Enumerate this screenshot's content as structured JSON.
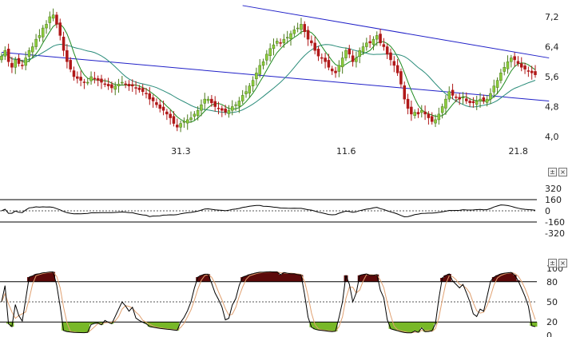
{
  "chart_data": [
    {
      "type": "candlestick",
      "x_tick_labels": [
        "31.3",
        "11.6",
        "21.8"
      ],
      "y_tick_labels": [
        "7,2",
        "6,4",
        "5,6",
        "4,8",
        "4,0"
      ],
      "ylim": [
        4.0,
        7.4
      ],
      "closes": [
        6.15,
        6.3,
        6.0,
        5.85,
        6.05,
        5.95,
        5.9,
        6.1,
        6.3,
        6.4,
        6.6,
        6.7,
        6.9,
        7.0,
        7.2,
        7.25,
        7.0,
        6.7,
        6.3,
        6.0,
        5.8,
        5.6,
        5.55,
        5.5,
        5.45,
        5.45,
        5.6,
        5.55,
        5.5,
        5.45,
        5.4,
        5.35,
        5.3,
        5.35,
        5.4,
        5.45,
        5.4,
        5.35,
        5.35,
        5.3,
        5.25,
        5.2,
        5.15,
        5.0,
        4.95,
        4.85,
        4.75,
        4.7,
        4.6,
        4.5,
        4.35,
        4.25,
        4.35,
        4.4,
        4.45,
        4.5,
        4.6,
        4.7,
        4.85,
        5.0,
        5.0,
        4.9,
        4.8,
        4.75,
        4.7,
        4.65,
        4.7,
        4.8,
        4.85,
        4.95,
        5.1,
        5.2,
        5.35,
        5.5,
        5.7,
        5.9,
        6.0,
        6.2,
        6.35,
        6.45,
        6.55,
        6.5,
        6.6,
        6.65,
        6.75,
        6.85,
        6.9,
        7.0,
        6.8,
        6.6,
        6.5,
        6.3,
        6.15,
        6.1,
        6.0,
        5.85,
        5.75,
        5.7,
        5.9,
        6.1,
        6.3,
        6.2,
        6.0,
        6.1,
        6.3,
        6.4,
        6.5,
        6.5,
        6.6,
        6.7,
        6.5,
        6.4,
        6.2,
        6.05,
        5.9,
        5.7,
        5.4,
        5.0,
        4.75,
        4.6,
        4.65,
        4.6,
        4.7,
        4.6,
        4.5,
        4.4,
        4.45,
        4.6,
        4.8,
        5.0,
        5.2,
        5.1,
        5.05,
        5.0,
        5.05,
        4.95,
        4.9,
        4.9,
        4.95,
        5.0,
        4.95,
        5.0,
        5.15,
        5.35,
        5.5,
        5.7,
        5.85,
        6.0,
        6.1,
        6.05,
        5.95,
        5.85,
        5.8,
        5.75,
        5.7,
        5.65
      ],
      "series": [
        {
          "name": "",
          "kind": "moving-average",
          "color": "#1e8a1e",
          "period": 6
        },
        {
          "name": "",
          "kind": "moving-average",
          "color": "#2a8c7a",
          "period": 20
        }
      ],
      "trendlines": [
        {
          "color": "#2020c8",
          "from": [
            0,
            6.25
          ],
          "to": [
            159,
            4.95
          ]
        },
        {
          "color": "#2020c8",
          "from": [
            70,
            7.5
          ],
          "to": [
            159,
            6.1
          ]
        }
      ],
      "up_color": "#8ccc3c",
      "down_color": "#b01818"
    },
    {
      "type": "oscillator-cci",
      "y_tick_labels": [
        "320",
        "160",
        "0",
        "-160",
        "-320"
      ],
      "ylim": [
        -320,
        320
      ],
      "bands": [
        160,
        -160
      ],
      "zero_line": 0,
      "line_color": "#000000",
      "positive_fill": "#5c0a0a",
      "negative_fill": "#78b828"
    },
    {
      "type": "oscillator-stochastic",
      "y_tick_labels": [
        "100",
        "80",
        "50",
        "20",
        "0"
      ],
      "ylim": [
        0,
        100
      ],
      "bands": [
        80,
        50,
        20
      ],
      "line_color": "#000000",
      "signal_color": "#e0a070",
      "overbought_fill": "#5c0a0a",
      "oversold_fill": "#78b828"
    }
  ],
  "panel_controls": {
    "expand_glyph": "±",
    "close_glyph": "×"
  }
}
